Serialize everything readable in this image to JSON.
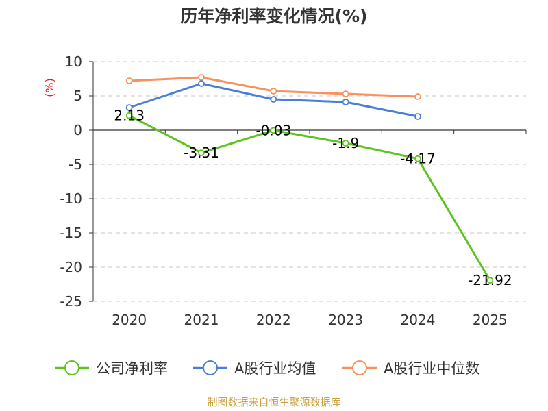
{
  "chart_data": {
    "type": "line",
    "title": "历年净利率变化情况(%)",
    "ylabel": "(%)",
    "xlabel": "",
    "categories": [
      "2020",
      "2021",
      "2022",
      "2023",
      "2024",
      "2025"
    ],
    "ylim": [
      -25,
      10
    ],
    "yticks": [
      10,
      5,
      0,
      -5,
      -10,
      -15,
      -20,
      -25
    ],
    "grid": true,
    "legend_position": "bottom",
    "series": [
      {
        "name": "公司净利率",
        "color": "#5dc31e",
        "values": [
          2.13,
          -3.31,
          -0.03,
          -1.9,
          -4.17,
          -21.92
        ],
        "labels": [
          "2.13",
          "-3.31",
          "-0.03",
          "-1.9",
          "-4.17",
          "-21.92"
        ]
      },
      {
        "name": "A股行业均值",
        "color": "#4a7fd8",
        "values": [
          3.3,
          6.8,
          4.5,
          4.1,
          2.0,
          null
        ]
      },
      {
        "name": "A股行业中位数",
        "color": "#f8925c",
        "values": [
          7.2,
          7.7,
          5.7,
          5.3,
          4.9,
          null
        ]
      }
    ],
    "source": "制图数据来自恒生聚源数据库"
  },
  "colors": {
    "unit_label": "#e02020",
    "source_label": "#c8a040",
    "grid": "#c8c8c8",
    "axis": "#333333"
  }
}
